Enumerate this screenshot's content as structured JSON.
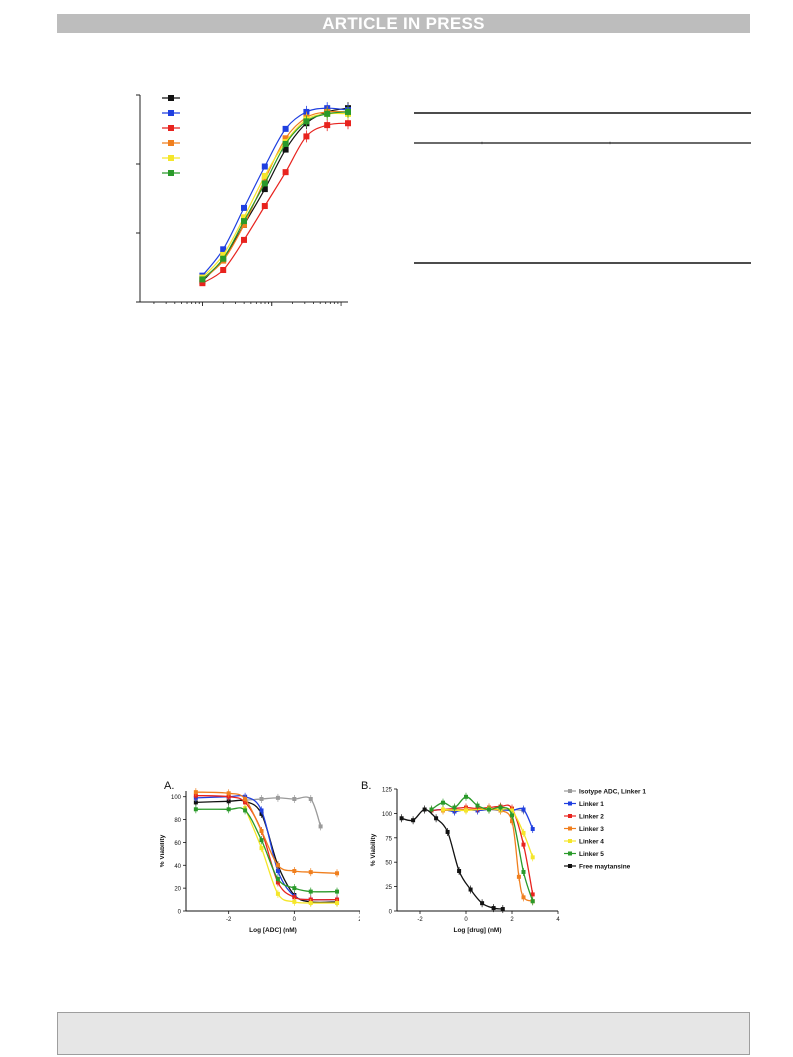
{
  "header": {
    "banner": "ARTICLE IN PRESS"
  },
  "colors": {
    "black": "#111111",
    "blue": "#1f3fe0",
    "red": "#e8231e",
    "orange": "#f07f1e",
    "yellow": "#f5e62a",
    "green": "#2a9a2a",
    "gray": "#9a9a9a"
  },
  "chart_data": [
    {
      "type": "line",
      "series": [
        {
          "color": "black",
          "x": [
            -2.0,
            -1.7,
            -1.4,
            -1.1,
            -0.8,
            -0.5,
            -0.2,
            0.1
          ],
          "y": [
            6,
            18,
            36,
            55,
            76,
            90,
            96,
            98
          ]
        },
        {
          "color": "blue",
          "x": [
            -2.0,
            -1.7,
            -1.4,
            -1.1,
            -0.8,
            -0.5,
            -0.2,
            0.1
          ],
          "y": [
            9,
            23,
            45,
            67,
            87,
            96,
            98,
            97
          ]
        },
        {
          "color": "red",
          "x": [
            -2.0,
            -1.7,
            -1.4,
            -1.1,
            -0.8,
            -0.5,
            -0.2,
            0.1
          ],
          "y": [
            5,
            12,
            28,
            46,
            64,
            83,
            89,
            90
          ]
        },
        {
          "color": "orange",
          "x": [
            -2.0,
            -1.7,
            -1.4,
            -1.1,
            -0.8,
            -0.5,
            -0.2,
            0.1
          ],
          "y": [
            7,
            17,
            36,
            60,
            82,
            93,
            96,
            96
          ]
        },
        {
          "color": "yellow",
          "x": [
            -2.0,
            -1.7,
            -1.4,
            -1.1,
            -0.8,
            -0.5,
            -0.2,
            0.1
          ],
          "y": [
            8,
            20,
            40,
            62,
            80,
            92,
            95,
            95
          ]
        },
        {
          "color": "green",
          "x": [
            -2.0,
            -1.7,
            -1.4,
            -1.1,
            -0.8,
            -0.5,
            -0.2,
            0.1
          ],
          "y": [
            7,
            18,
            38,
            58,
            79,
            91,
            95,
            96
          ]
        }
      ],
      "xlim": [
        -2.9,
        0.1
      ],
      "ylim": [
        -5,
        105
      ],
      "grid": false,
      "legend": "top-left"
    },
    {
      "type": "line",
      "panel_label": "A.",
      "xlabel": "Log [ADC] (nM)",
      "ylabel": "% Viability",
      "xticks": [
        "-2",
        "0",
        "2"
      ],
      "yticks": [
        "0",
        "20",
        "40",
        "60",
        "80",
        "100"
      ],
      "xlim": [
        -3.3,
        2.0
      ],
      "ylim": [
        0,
        105
      ],
      "grid": false,
      "series": [
        {
          "color": "gray",
          "x": [
            -1.5,
            -1.0,
            -0.5,
            0.0,
            0.5,
            0.8
          ],
          "y": [
            97,
            98,
            99,
            98,
            98,
            74
          ]
        },
        {
          "color": "black",
          "x": [
            -3.0,
            -2.0,
            -1.5,
            -1.0,
            -0.5,
            0.0,
            0.5,
            1.3
          ],
          "y": [
            95,
            96,
            96,
            85,
            40,
            14,
            8,
            8
          ]
        },
        {
          "color": "blue",
          "x": [
            -3.0,
            -2.0,
            -1.5,
            -1.0,
            -0.5,
            0.0,
            0.5,
            1.3
          ],
          "y": [
            99,
            100,
            100,
            88,
            35,
            13,
            10,
            10
          ]
        },
        {
          "color": "red",
          "x": [
            -3.0,
            -2.0,
            -1.5,
            -1.0,
            -0.5,
            0.0,
            0.5,
            1.3
          ],
          "y": [
            101,
            100,
            95,
            70,
            25,
            12,
            10,
            10
          ]
        },
        {
          "color": "orange",
          "x": [
            -3.0,
            -2.0,
            -1.5,
            -1.0,
            -0.5,
            0.0,
            0.5,
            1.3
          ],
          "y": [
            104,
            103,
            98,
            70,
            40,
            35,
            34,
            33
          ]
        },
        {
          "color": "yellow",
          "x": [
            -1.5,
            -1.0,
            -0.5,
            0.0,
            0.5,
            1.3
          ],
          "y": [
            90,
            55,
            15,
            8,
            7,
            7
          ]
        },
        {
          "color": "green",
          "x": [
            -3.0,
            -2.0,
            -1.5,
            -1.0,
            -0.5,
            0.0,
            0.5,
            1.3
          ],
          "y": [
            89,
            89,
            88,
            62,
            28,
            20,
            17,
            17
          ]
        }
      ]
    },
    {
      "type": "line",
      "panel_label": "B.",
      "xlabel": "Log [drug] (nM)",
      "ylabel": "% Viability",
      "xticks": [
        "-2",
        "0",
        "2",
        "4"
      ],
      "yticks": [
        "0",
        "25",
        "50",
        "75",
        "100",
        "125"
      ],
      "xlim": [
        -3.0,
        4.0
      ],
      "ylim": [
        0,
        125
      ],
      "grid": false,
      "legend": "right",
      "series": [
        {
          "name": "Isotype ADC, Linker 1",
          "color": "gray",
          "x": [
            -1.5,
            -1.0,
            -0.5,
            0.0,
            0.5,
            1.0,
            1.5,
            2.0,
            2.5
          ],
          "y": [
            103,
            104,
            102,
            104,
            103,
            104,
            103,
            104,
            103
          ]
        },
        {
          "name": "Linker 1",
          "color": "blue",
          "x": [
            -1.5,
            -1.0,
            -0.5,
            0.0,
            0.5,
            1.0,
            1.5,
            2.0,
            2.5,
            2.9
          ],
          "y": [
            103,
            104,
            102,
            104,
            103,
            104,
            104,
            103,
            104,
            84
          ]
        },
        {
          "name": "Linker 2",
          "color": "red",
          "x": [
            -1.5,
            -1.0,
            -0.5,
            0.0,
            0.5,
            1.0,
            1.5,
            2.0,
            2.5,
            2.9
          ],
          "y": [
            103,
            104,
            105,
            106,
            105,
            106,
            107,
            105,
            68,
            17
          ]
        },
        {
          "name": "Linker 3",
          "color": "orange",
          "x": [
            -1.0,
            0.0,
            1.0,
            1.5,
            2.0,
            2.3,
            2.5,
            2.9
          ],
          "y": [
            103,
            104,
            104,
            103,
            92,
            35,
            14,
            10
          ]
        },
        {
          "name": "Linker 4",
          "color": "yellow",
          "x": [
            -1.0,
            0.0,
            1.0,
            1.5,
            2.0,
            2.5,
            2.9
          ],
          "y": [
            104,
            103,
            105,
            104,
            103,
            80,
            55
          ]
        },
        {
          "name": "Linker 5",
          "color": "green",
          "x": [
            -1.5,
            -1.0,
            -0.5,
            0.0,
            0.5,
            1.0,
            1.5,
            2.0,
            2.5,
            2.9
          ],
          "y": [
            104,
            111,
            106,
            117,
            108,
            104,
            106,
            98,
            40,
            10
          ]
        },
        {
          "name": "Free maytansine",
          "color": "black",
          "x": [
            -2.8,
            -2.3,
            -1.8,
            -1.3,
            -0.8,
            -0.3,
            0.2,
            0.7,
            1.2,
            1.6
          ],
          "y": [
            95,
            93,
            104,
            95,
            81,
            41,
            22,
            8,
            3,
            2
          ]
        }
      ]
    }
  ]
}
